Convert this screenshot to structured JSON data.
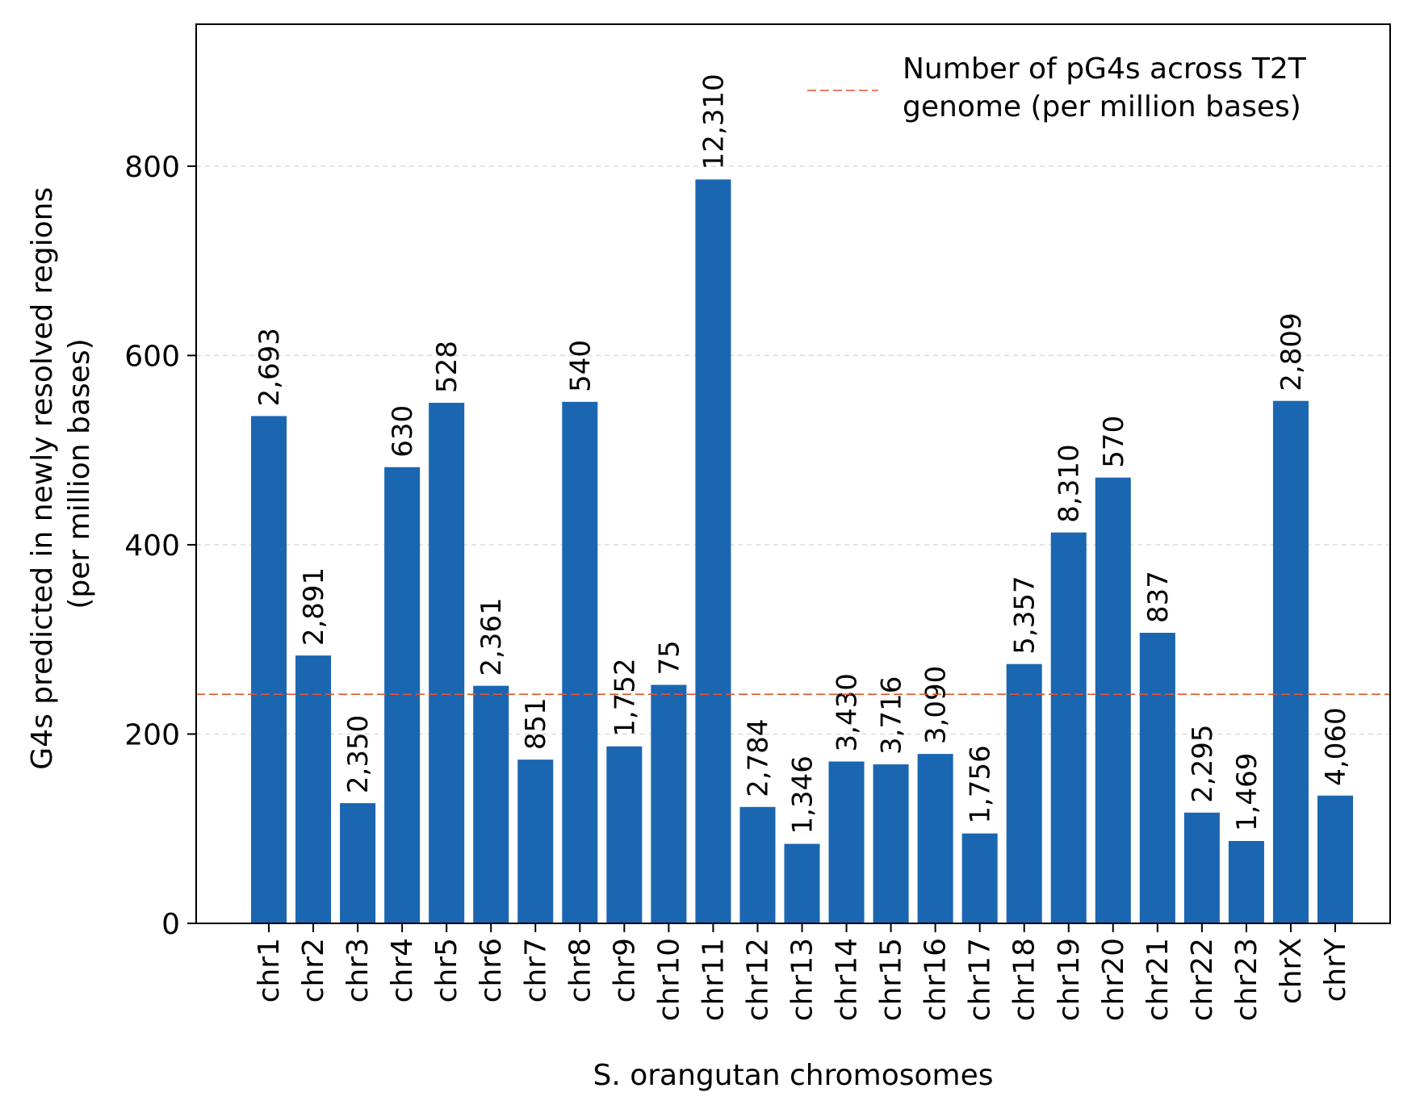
{
  "chart_data": {
    "type": "bar",
    "xlabel": "S. orangutan chromosomes",
    "ylabel_lines": [
      "G4s predicted in newly resolved regions",
      "(per million bases)"
    ],
    "ylim": [
      0,
      950
    ],
    "yticks": [
      0,
      200,
      400,
      600,
      800
    ],
    "grid": "horizontal dashed",
    "bar_color": "#1b66b1",
    "categories": [
      "chr1",
      "chr2",
      "chr3",
      "chr4",
      "chr5",
      "chr6",
      "chr7",
      "chr8",
      "chr9",
      "chr10",
      "chr11",
      "chr12",
      "chr13",
      "chr14",
      "chr15",
      "chr16",
      "chr17",
      "chr18",
      "chr19",
      "chr20",
      "chr21",
      "chr22",
      "chr23",
      "chrX",
      "chrY"
    ],
    "values": [
      536,
      283,
      127,
      482,
      550,
      251,
      173,
      551,
      187,
      252,
      786,
      123,
      84,
      171,
      168,
      179,
      95,
      274,
      413,
      471,
      307,
      117,
      87,
      552,
      135
    ],
    "bar_labels": [
      "2,693",
      "2,891",
      "2,350",
      "630",
      "528",
      "2,361",
      "851",
      "540",
      "1,752",
      "75",
      "12,310",
      "2,784",
      "1,346",
      "3,430",
      "3,716",
      "3,090",
      "1,756",
      "5,357",
      "8,310",
      "570",
      "837",
      "2,295",
      "1,469",
      "2,809",
      "4,060"
    ],
    "reference_line": {
      "value": 242,
      "color": "#e8552c",
      "legend_lines": [
        "Number of pG4s across T2T",
        "genome (per million bases)"
      ]
    },
    "legend_position": "top-right"
  }
}
